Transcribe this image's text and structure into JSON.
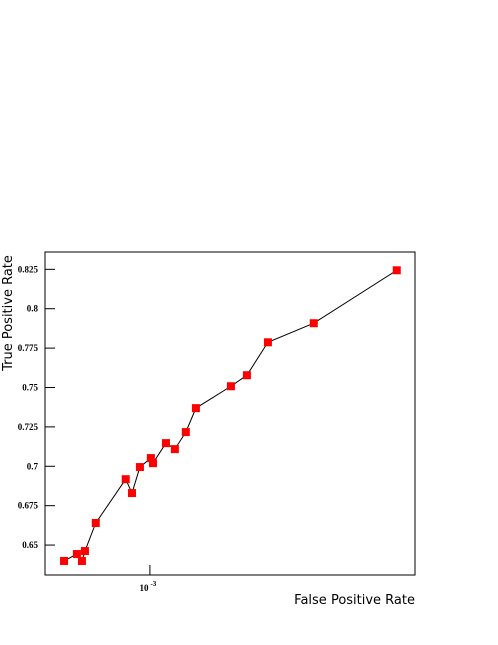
{
  "chart_data": {
    "type": "line",
    "xlabel": "False Positive Rate",
    "ylabel": "True Positive Rate",
    "xscale": "log",
    "x": [
      0.000643,
      0.000687,
      0.000705,
      0.000716,
      0.000757,
      0.000883,
      0.000912,
      0.00095,
      0.001005,
      0.001016,
      0.001086,
      0.001137,
      0.001203,
      0.001267,
      0.001517,
      0.001647,
      0.001835,
      0.002323,
      0.00356
    ],
    "series": [
      {
        "color": "#ff0000",
        "line_color": "#000000",
        "values": [
          0.6399,
          0.6443,
          0.6399,
          0.6462,
          0.664,
          0.6918,
          0.683,
          0.6995,
          0.7052,
          0.702,
          0.7147,
          0.7109,
          0.7217,
          0.7369,
          0.7508,
          0.7578,
          0.7787,
          0.7908,
          0.8244
        ]
      }
    ],
    "xlim": [
      0.000583,
      0.00391
    ],
    "ylim": [
      0.631,
      0.836
    ],
    "xticks": [
      {
        "value": 0.001,
        "label": "10",
        "exponent": "-3"
      }
    ],
    "yticks": [
      0.65,
      0.675,
      0.7,
      0.725,
      0.75,
      0.775,
      0.8,
      0.825
    ]
  }
}
